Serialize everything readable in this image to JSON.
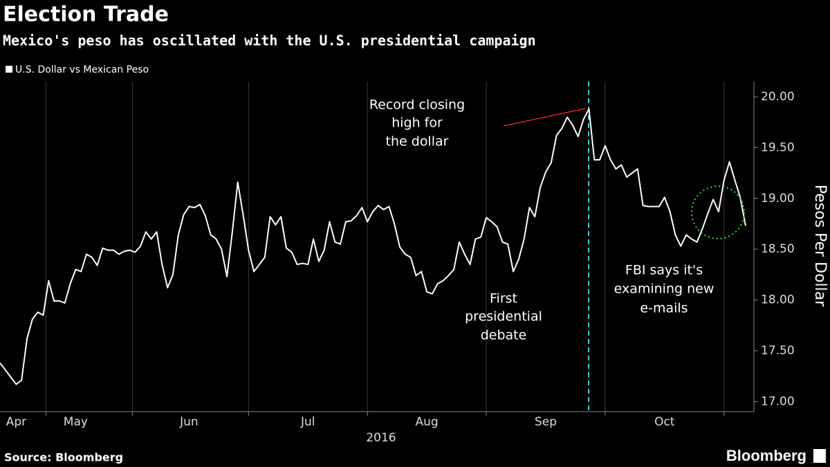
{
  "chart_data": {
    "type": "line",
    "title": "Election Trade",
    "subtitle": "Mexico's peso has oscillated with the U.S. presidential campaign",
    "ylabel": "Pesos Per Dollar",
    "xlabel": "2016",
    "source": "Source: Bloomberg",
    "brand": "Bloomberg",
    "ylim": [
      16.9,
      20.15
    ],
    "yticks": [
      {
        "value": 17,
        "label": "17.00"
      },
      {
        "value": 17.5,
        "label": "17.50"
      },
      {
        "value": 18,
        "label": "18.00"
      },
      {
        "value": 18.5,
        "label": "18.50"
      },
      {
        "value": 19,
        "label": "19.00"
      },
      {
        "value": 19.5,
        "label": "19.50"
      },
      {
        "value": 20,
        "label": "20.00"
      }
    ],
    "categories": [
      null,
      null,
      null,
      "Apr",
      null,
      null,
      null,
      null,
      null,
      null,
      null,
      null,
      null,
      null,
      "May",
      null,
      null,
      null,
      null,
      null,
      null,
      null,
      null,
      null,
      null,
      null,
      null,
      null,
      null,
      null,
      null,
      null,
      null,
      null,
      null,
      "Jun",
      null,
      null,
      null,
      null,
      null,
      null,
      null,
      null,
      null,
      null,
      null,
      null,
      null,
      null,
      null,
      null,
      null,
      null,
      null,
      null,
      null,
      "Jul",
      null,
      null,
      null,
      null,
      null,
      null,
      null,
      null,
      null,
      null,
      null,
      null,
      null,
      null,
      null,
      null,
      null,
      null,
      null,
      null,
      null,
      "Aug",
      null,
      null,
      null,
      null,
      null,
      null,
      null,
      null,
      null,
      null,
      null,
      null,
      null,
      null,
      null,
      null,
      null,
      null,
      null,
      null,
      null,
      "Sep",
      null,
      null,
      null,
      null,
      null,
      null,
      null,
      null,
      null,
      null,
      null,
      null,
      null,
      null,
      null,
      null,
      null,
      null,
      null,
      null,
      null,
      "Oct",
      null,
      null,
      null,
      null,
      null,
      null,
      null,
      null,
      null,
      null,
      null,
      null,
      null,
      null,
      null
    ],
    "series": [
      {
        "name": "U.S. Dollar vs Mexican Peso",
        "color": "#ffffff",
        "values": [
          17.38,
          17.31,
          17.24,
          17.17,
          17.21,
          17.62,
          17.81,
          17.88,
          17.85,
          18.19,
          17.99,
          17.99,
          17.97,
          18.16,
          18.3,
          18.28,
          18.45,
          18.42,
          18.34,
          18.51,
          18.49,
          18.49,
          18.45,
          18.48,
          18.49,
          18.47,
          18.53,
          18.67,
          18.6,
          18.67,
          18.35,
          18.12,
          18.25,
          18.64,
          18.84,
          18.92,
          18.91,
          18.94,
          18.83,
          18.64,
          18.6,
          18.5,
          18.23,
          18.67,
          19.16,
          18.84,
          18.49,
          18.28,
          18.35,
          18.42,
          18.82,
          18.74,
          18.82,
          18.51,
          18.47,
          18.35,
          18.36,
          18.35,
          18.6,
          18.38,
          18.49,
          18.77,
          18.57,
          18.55,
          18.77,
          18.78,
          18.83,
          18.91,
          18.77,
          18.87,
          18.93,
          18.89,
          18.92,
          18.75,
          18.52,
          18.45,
          18.42,
          18.24,
          18.28,
          18.08,
          18.06,
          18.16,
          18.19,
          18.24,
          18.3,
          18.57,
          18.45,
          18.35,
          18.6,
          18.62,
          18.81,
          18.77,
          18.72,
          18.57,
          18.55,
          18.28,
          18.4,
          18.6,
          18.91,
          18.82,
          19.11,
          19.26,
          19.35,
          19.62,
          19.69,
          19.8,
          19.72,
          19.61,
          19.78,
          19.88,
          19.38,
          19.38,
          19.52,
          19.38,
          19.29,
          19.33,
          19.21,
          19.25,
          19.29,
          18.93,
          18.92,
          18.92,
          18.92,
          19.01,
          18.87,
          18.64,
          18.53,
          18.64,
          18.6,
          18.57,
          18.7,
          18.85,
          18.99,
          18.87,
          19.18,
          19.36,
          19.18,
          19.01,
          18.73
        ]
      }
    ],
    "annotations": [
      {
        "lines": [
          "Record closing",
          "high for",
          "the dollar"
        ],
        "color": "#ff2b2b"
      },
      {
        "lines": [
          "First",
          "presidential",
          "debate"
        ],
        "color": "#3fe0ee"
      },
      {
        "lines": [
          "FBI says it's",
          "examining new",
          "e-mails"
        ],
        "color": "#33e633"
      }
    ]
  }
}
